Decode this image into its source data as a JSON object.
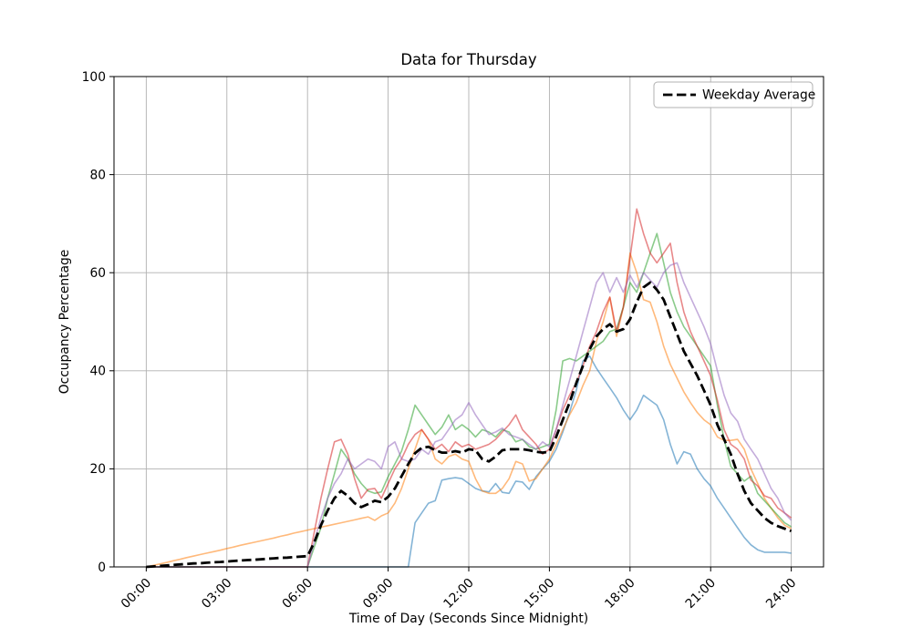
{
  "chart_data": {
    "type": "line",
    "title": "Data for Thursday",
    "xlabel": "Time of Day (Seconds Since Midnight)",
    "ylabel": "Occupancy Percentage",
    "xlim_hours": [
      -1.2,
      25.2
    ],
    "ylim": [
      0,
      100
    ],
    "grid": true,
    "legend_position": "upper right",
    "x_tick_hours": [
      0,
      3,
      6,
      9,
      12,
      15,
      18,
      21,
      24
    ],
    "x_tick_labels": [
      "00:00",
      "03:00",
      "06:00",
      "09:00",
      "12:00",
      "15:00",
      "18:00",
      "21:00",
      "24:00"
    ],
    "y_ticks": [
      0,
      20,
      40,
      60,
      80,
      100
    ],
    "y_tick_labels": [
      "0",
      "20",
      "40",
      "60",
      "80",
      "100"
    ],
    "grid_color": "#b0b0b0",
    "spine_color": "#000000",
    "x_start_hour": 0,
    "x_step_hours": 0.25,
    "series": [
      {
        "name": "day-line-blue",
        "color_name": "blue",
        "color": "rgba(31,119,180,0.55)",
        "dashed": false,
        "width": 1.6,
        "values": [
          0,
          0,
          0,
          0,
          0,
          0,
          0,
          0,
          0,
          0,
          0,
          0,
          0,
          0,
          0,
          0,
          0,
          0,
          0,
          0,
          0,
          0,
          0,
          0,
          0,
          0,
          0,
          0,
          0,
          0,
          0,
          0,
          0,
          0,
          0,
          0,
          0,
          0,
          0,
          0,
          9,
          11,
          13,
          13.5,
          17.7,
          18,
          18.2,
          18,
          17,
          16,
          15.5,
          15.3,
          17,
          15.2,
          15,
          17.5,
          17.3,
          15.8,
          18.4,
          20,
          21.5,
          24,
          27.5,
          31.5,
          36,
          42,
          43,
          40.5,
          38.5,
          36.5,
          34.5,
          32,
          30,
          32,
          35,
          34,
          33,
          30,
          25,
          21,
          23.5,
          23,
          20,
          18,
          16.5,
          14,
          12,
          10,
          8,
          6,
          4.5,
          3.5,
          3,
          3,
          3,
          3,
          2.8
        ]
      },
      {
        "name": "day-line-orange",
        "color_name": "orange",
        "color": "rgba(255,127,14,0.55)",
        "dashed": false,
        "width": 1.6,
        "values": [
          0,
          0.3,
          0.6,
          0.9,
          1.25,
          1.55,
          1.9,
          2.2,
          2.5,
          2.8,
          3.1,
          3.4,
          3.75,
          4.05,
          4.4,
          4.7,
          5,
          5.3,
          5.6,
          5.9,
          6.25,
          6.55,
          6.9,
          7.2,
          7.5,
          7.8,
          8.1,
          8.4,
          8.7,
          9,
          9.3,
          9.6,
          9.9,
          10.2,
          9.5,
          10.4,
          11,
          13,
          16,
          20,
          24,
          28,
          26,
          22,
          21,
          22.5,
          23,
          22,
          21.5,
          18,
          15.5,
          15,
          15,
          16,
          18,
          21.5,
          21,
          17.5,
          18,
          20,
          22,
          25,
          28,
          31,
          33.5,
          37,
          40,
          46,
          50,
          55,
          47,
          53,
          64,
          60,
          54.5,
          54,
          50,
          45,
          41.3,
          38.5,
          35.7,
          33.5,
          31.5,
          30,
          29,
          26.5,
          25.8,
          25.8,
          26,
          24,
          20,
          17,
          14,
          12,
          10,
          8.5,
          7.8
        ]
      },
      {
        "name": "day-line-green",
        "color_name": "green",
        "color": "rgba(44,160,44,0.55)",
        "dashed": false,
        "width": 1.6,
        "values": [
          0,
          0,
          0,
          0,
          0,
          0,
          0,
          0,
          0,
          0,
          0,
          0,
          0,
          0,
          0,
          0,
          0,
          0,
          0,
          0,
          0,
          0,
          0,
          0,
          0,
          4,
          8,
          14,
          19,
          24,
          22,
          19,
          17,
          15.5,
          15,
          15.3,
          18.4,
          21,
          23.6,
          28,
          33,
          31,
          29,
          27,
          28.5,
          31,
          28,
          29,
          28,
          26.5,
          28,
          27.5,
          26.5,
          28,
          27.5,
          25.5,
          26,
          24.5,
          24,
          24.5,
          25,
          32,
          42,
          42.5,
          42,
          43,
          44,
          45,
          46,
          48,
          48.5,
          53,
          58,
          56,
          60,
          64,
          68,
          62,
          56,
          52,
          49,
          47,
          45,
          43,
          41,
          33,
          26,
          20.5,
          19,
          17.5,
          18.5,
          15,
          13.5,
          12,
          10.5,
          9,
          8.2
        ]
      },
      {
        "name": "day-line-red",
        "color_name": "red",
        "color": "rgba(214,39,40,0.55)",
        "dashed": false,
        "width": 1.6,
        "values": [
          0,
          0,
          0,
          0,
          0,
          0,
          0,
          0,
          0,
          0,
          0,
          0,
          0,
          0,
          0,
          0,
          0,
          0,
          0,
          0,
          0,
          0,
          0,
          0,
          0,
          7,
          14,
          20,
          25.5,
          26,
          23,
          18,
          14,
          15.8,
          16,
          14,
          17,
          20,
          22,
          25,
          27,
          28,
          26,
          24,
          25,
          23.5,
          25.5,
          24.5,
          25,
          24,
          24.5,
          25,
          26,
          27.5,
          29,
          31,
          28,
          26.5,
          25,
          23,
          24,
          28,
          32,
          35,
          37.5,
          41,
          45,
          48,
          52,
          55,
          48,
          53,
          63,
          73,
          68,
          64,
          62,
          64,
          66,
          58,
          52,
          48,
          45,
          42,
          39,
          34,
          28,
          25,
          24,
          22,
          17.7,
          16.5,
          14.5,
          14,
          12,
          11,
          10
        ]
      },
      {
        "name": "day-line-purple",
        "color_name": "purple",
        "color": "rgba(148,103,189,0.55)",
        "dashed": false,
        "width": 1.6,
        "values": [
          0,
          0,
          0,
          0,
          0,
          0,
          0,
          0,
          0,
          0,
          0,
          0,
          0,
          0,
          0,
          0,
          0,
          0,
          0,
          0,
          0,
          0,
          0,
          0,
          0,
          5,
          10,
          14,
          17,
          19,
          22,
          20,
          21,
          22,
          21.5,
          20,
          24.5,
          25.5,
          22,
          21.5,
          22,
          24,
          23,
          25.5,
          26,
          28,
          30,
          31,
          33.5,
          31,
          29,
          27,
          27.5,
          28.3,
          27,
          26.5,
          26,
          25,
          24,
          25.5,
          24.5,
          28,
          33,
          38,
          43,
          48,
          53,
          58,
          60,
          56,
          59,
          56,
          59.5,
          57,
          60,
          58.5,
          57,
          60,
          61.5,
          62,
          58,
          55,
          52,
          49,
          45.5,
          40,
          35,
          31.4,
          29.7,
          26,
          24,
          22,
          19,
          16,
          14,
          11,
          9.5
        ]
      },
      {
        "name": "weekday-average",
        "label": "Weekday Average",
        "color_name": "black",
        "color": "#000000",
        "dashed": true,
        "width": 2.8,
        "values": [
          0,
          0.1,
          0.2,
          0.3,
          0.4,
          0.5,
          0.6,
          0.7,
          0.75,
          0.85,
          0.95,
          1,
          1.1,
          1.2,
          1.3,
          1.4,
          1.45,
          1.55,
          1.65,
          1.75,
          1.85,
          1.9,
          2,
          2.1,
          2.2,
          5,
          8.5,
          11.5,
          14,
          15.5,
          14.5,
          13,
          12.2,
          12.8,
          13.5,
          13.2,
          14.3,
          16,
          18.5,
          21,
          23.2,
          24.3,
          24.5,
          23.8,
          23.3,
          23.3,
          23.6,
          23.3,
          24,
          23.8,
          22,
          21.5,
          22.5,
          23.8,
          24,
          24,
          24,
          23.8,
          23.5,
          23.3,
          23.5,
          26.5,
          30,
          33.5,
          37.5,
          41,
          44.4,
          47,
          48.5,
          49.5,
          48,
          48.5,
          50.5,
          54,
          57,
          58,
          56.5,
          54.5,
          51,
          47.5,
          44,
          41.5,
          39,
          36,
          33,
          29,
          26,
          23,
          19,
          15.5,
          13,
          11.5,
          10,
          9,
          8.3,
          7.8,
          7.3
        ]
      }
    ],
    "legend": {
      "items": [
        {
          "label": "Weekday Average",
          "style": "dashed",
          "color": "#000000"
        }
      ]
    }
  }
}
